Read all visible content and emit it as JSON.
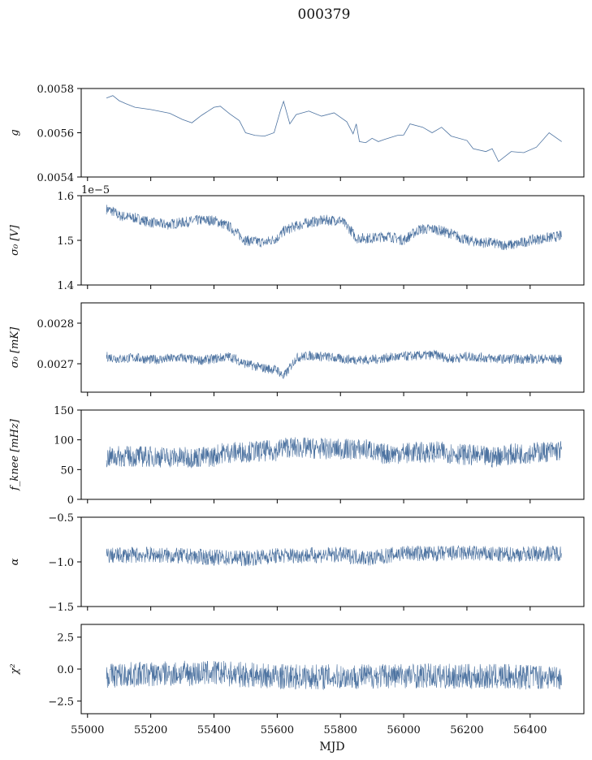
{
  "figure": {
    "title": "000379",
    "xlabel": "MJD"
  },
  "colors": {
    "series": "#4c72a0",
    "axis": "#000000"
  },
  "chart_data": [
    {
      "type": "line",
      "ylabel": "g",
      "ylim": [
        0.0054,
        0.0058
      ],
      "yticks": [
        0.0054,
        0.0056,
        0.0058
      ],
      "yticklabels": [
        "0.0054",
        "0.0056",
        "0.0058"
      ],
      "xlim": [
        54980,
        56570
      ],
      "noise": 0.0,
      "series": [
        {
          "x": [
            55060,
            55080,
            55100,
            55120,
            55150,
            55200,
            55260,
            55300,
            55330,
            55360,
            55400,
            55420,
            55450,
            55480,
            55500,
            55530,
            55560,
            55590,
            55610,
            55620,
            55640,
            55660,
            55700,
            55740,
            55780,
            55820,
            55840,
            55850,
            55860,
            55880,
            55900,
            55920,
            55940,
            55980,
            56000,
            56020,
            56060,
            56090,
            56120,
            56150,
            56200,
            56220,
            56260,
            56280,
            56300,
            56340,
            56380,
            56420,
            56460,
            56500
          ],
          "values": [
            0.005757,
            0.005768,
            0.005745,
            0.005732,
            0.005715,
            0.005705,
            0.005688,
            0.00566,
            0.005645,
            0.005678,
            0.005715,
            0.00572,
            0.005685,
            0.005655,
            0.0056,
            0.005588,
            0.005585,
            0.0056,
            0.0057,
            0.005742,
            0.00564,
            0.005682,
            0.005698,
            0.005675,
            0.00569,
            0.00565,
            0.005595,
            0.00564,
            0.00556,
            0.005555,
            0.005575,
            0.00556,
            0.00557,
            0.005588,
            0.00559,
            0.00564,
            0.005625,
            0.0056,
            0.005625,
            0.005585,
            0.005565,
            0.005528,
            0.005515,
            0.005528,
            0.00547,
            0.005515,
            0.00551,
            0.005535,
            0.0056,
            0.00556
          ]
        }
      ]
    },
    {
      "type": "line",
      "ylabel": "σ₀ [V]",
      "ylim": [
        1.4,
        1.6
      ],
      "offset": "1e−5",
      "yticks": [
        1.4,
        1.5,
        1.6
      ],
      "yticklabels": [
        "1.4",
        "1.5",
        "1.6"
      ],
      "xlim": [
        54980,
        56570
      ],
      "noise": 0.012,
      "series": [
        {
          "x": [
            55060,
            55080,
            55100,
            55150,
            55200,
            55250,
            55300,
            55350,
            55400,
            55450,
            55500,
            55560,
            55600,
            55620,
            55650,
            55700,
            55750,
            55800,
            55830,
            55850,
            55870,
            55900,
            55950,
            56000,
            56050,
            56100,
            56150,
            56200,
            56250,
            56280,
            56300,
            56350,
            56400,
            56450,
            56500
          ],
          "values": [
            1.57,
            1.565,
            1.555,
            1.55,
            1.54,
            1.535,
            1.54,
            1.545,
            1.545,
            1.53,
            1.5,
            1.495,
            1.505,
            1.52,
            1.53,
            1.54,
            1.545,
            1.545,
            1.525,
            1.505,
            1.505,
            1.505,
            1.51,
            1.5,
            1.525,
            1.525,
            1.515,
            1.5,
            1.495,
            1.495,
            1.49,
            1.49,
            1.5,
            1.505,
            1.51
          ]
        }
      ]
    },
    {
      "type": "line",
      "ylabel": "σ₀ [mK]",
      "ylim": [
        0.00263,
        0.00285
      ],
      "yticks": [
        0.0027,
        0.0028
      ],
      "yticklabels": [
        "0.0027",
        "0.0028"
      ],
      "xlim": [
        54980,
        56570
      ],
      "noise": 1.2e-05,
      "series": [
        {
          "x": [
            55060,
            55100,
            55150,
            55200,
            55250,
            55300,
            55350,
            55400,
            55450,
            55500,
            55550,
            55600,
            55620,
            55640,
            55660,
            55700,
            55750,
            55800,
            55850,
            55900,
            55950,
            56000,
            56050,
            56100,
            56150,
            56200,
            56250,
            56300,
            56350,
            56400,
            56450,
            56500
          ],
          "values": [
            0.002718,
            0.002712,
            0.002715,
            0.00271,
            0.002712,
            0.002715,
            0.002708,
            0.002712,
            0.002718,
            0.0027,
            0.00269,
            0.002685,
            0.002668,
            0.00269,
            0.002715,
            0.00272,
            0.002718,
            0.002712,
            0.00271,
            0.00271,
            0.002715,
            0.002718,
            0.00272,
            0.002722,
            0.002712,
            0.002718,
            0.002715,
            0.002712,
            0.002712,
            0.002712,
            0.002712,
            0.00271
          ]
        }
      ]
    },
    {
      "type": "line",
      "ylabel": "f_knee [mHz]",
      "ylim": [
        0,
        150
      ],
      "yticks": [
        0,
        50,
        100,
        150
      ],
      "yticklabels": [
        "0",
        "50",
        "100",
        "150"
      ],
      "xlim": [
        54980,
        56570
      ],
      "noise": 18,
      "series": [
        {
          "x": [
            55060,
            55100,
            55200,
            55300,
            55400,
            55420,
            55500,
            55600,
            55620,
            55700,
            55800,
            55900,
            55910,
            56000,
            56100,
            56150,
            56200,
            56250,
            56280,
            56300,
            56350,
            56400,
            56450,
            56500
          ],
          "values": [
            70,
            72,
            72,
            70,
            72,
            78,
            80,
            82,
            88,
            86,
            84,
            84,
            76,
            78,
            80,
            78,
            75,
            72,
            70,
            74,
            76,
            78,
            80,
            82
          ]
        }
      ]
    },
    {
      "type": "line",
      "ylabel": "α",
      "ylim": [
        -1.5,
        -0.5
      ],
      "yticks": [
        -1.5,
        -1.0,
        -0.5
      ],
      "yticklabels": [
        "−1.5",
        "−1.0",
        "−0.5"
      ],
      "xlim": [
        54980,
        56570
      ],
      "noise": 0.09,
      "series": [
        {
          "x": [
            55060,
            55200,
            55400,
            55500,
            55600,
            55800,
            55900,
            56000,
            56100,
            56200,
            56300,
            56400,
            56500
          ],
          "values": [
            -0.93,
            -0.92,
            -0.95,
            -0.96,
            -0.93,
            -0.92,
            -0.96,
            -0.9,
            -0.91,
            -0.9,
            -0.92,
            -0.91,
            -0.9
          ]
        }
      ]
    },
    {
      "type": "line",
      "ylabel": "χ²",
      "ylim": [
        -3.5,
        3.5
      ],
      "yticks": [
        -2.5,
        0.0,
        2.5
      ],
      "yticklabels": [
        "−2.5",
        "0.0",
        "2.5"
      ],
      "xlim": [
        54980,
        56570
      ],
      "noise": 1.0,
      "series": [
        {
          "x": [
            55060,
            55200,
            55400,
            55600,
            55800,
            56000,
            56200,
            56400,
            56500
          ],
          "values": [
            -0.5,
            -0.4,
            -0.3,
            -0.6,
            -0.6,
            -0.5,
            -0.6,
            -0.6,
            -0.6
          ]
        }
      ]
    }
  ],
  "xticks": [
    55000,
    55200,
    55400,
    55600,
    55800,
    56000,
    56200,
    56400
  ],
  "xticklabels": [
    "55000",
    "55200",
    "55400",
    "55600",
    "55800",
    "56000",
    "56200",
    "56400"
  ]
}
